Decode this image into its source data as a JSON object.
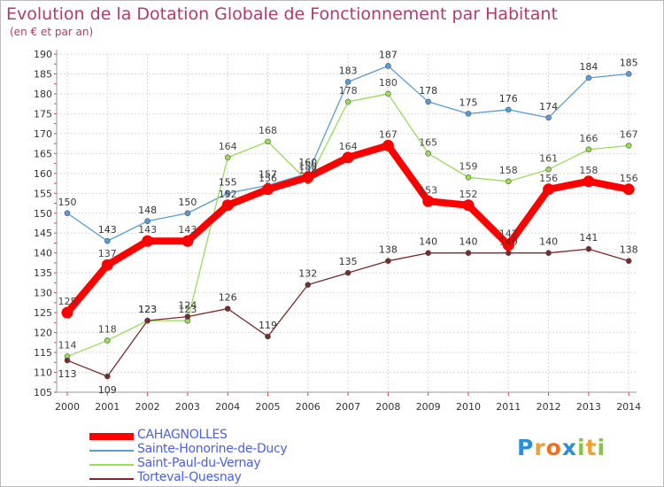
{
  "chart_data": {
    "type": "line",
    "title": "Evolution de la Dotation Globale de Fonctionnement par Habitant",
    "subtitle": "(en € et par an)",
    "x": [
      "2000",
      "2001",
      "2002",
      "2003",
      "2004",
      "2005",
      "2006",
      "2007",
      "2008",
      "2009",
      "2010",
      "2011",
      "2012",
      "2013",
      "2014"
    ],
    "ylim": [
      105,
      190
    ],
    "yticks": [
      105,
      110,
      115,
      120,
      125,
      130,
      135,
      140,
      145,
      150,
      155,
      160,
      165,
      170,
      175,
      180,
      185,
      190
    ],
    "grid": true,
    "legend_position": "bottom-left",
    "series": [
      {
        "name": "CAHAGNOLLES",
        "color": "#ff0000",
        "values": [
          125,
          137,
          143,
          143,
          152,
          156,
          159,
          164,
          167,
          153,
          152,
          142,
          156,
          158,
          156
        ]
      },
      {
        "name": "Sainte-Honorine-de-Ducy",
        "color": "#5b9bd5",
        "values": [
          150,
          143,
          148,
          150,
          155,
          157,
          160,
          183,
          187,
          178,
          175,
          176,
          174,
          184,
          185
        ]
      },
      {
        "name": "Saint-Paul-du-Vernay",
        "color": "#99dd55",
        "values": [
          114,
          118,
          123,
          123,
          164,
          168,
          158,
          178,
          180,
          165,
          159,
          158,
          161,
          166,
          167
        ]
      },
      {
        "name": "Torteval-Quesnay",
        "color": "#7a2a2a",
        "values": [
          113,
          109,
          123,
          124,
          126,
          119,
          132,
          135,
          138,
          140,
          140,
          140,
          140,
          141,
          138
        ]
      }
    ]
  },
  "logo": {
    "text": [
      "P",
      "r",
      "o",
      "x",
      "i",
      "t",
      "i"
    ],
    "colors": [
      "#2b8fd8",
      "#f0a030",
      "#f07020",
      "#2b8fd8",
      "#8bc34a",
      "#f0a030",
      "#8bc34a"
    ]
  }
}
